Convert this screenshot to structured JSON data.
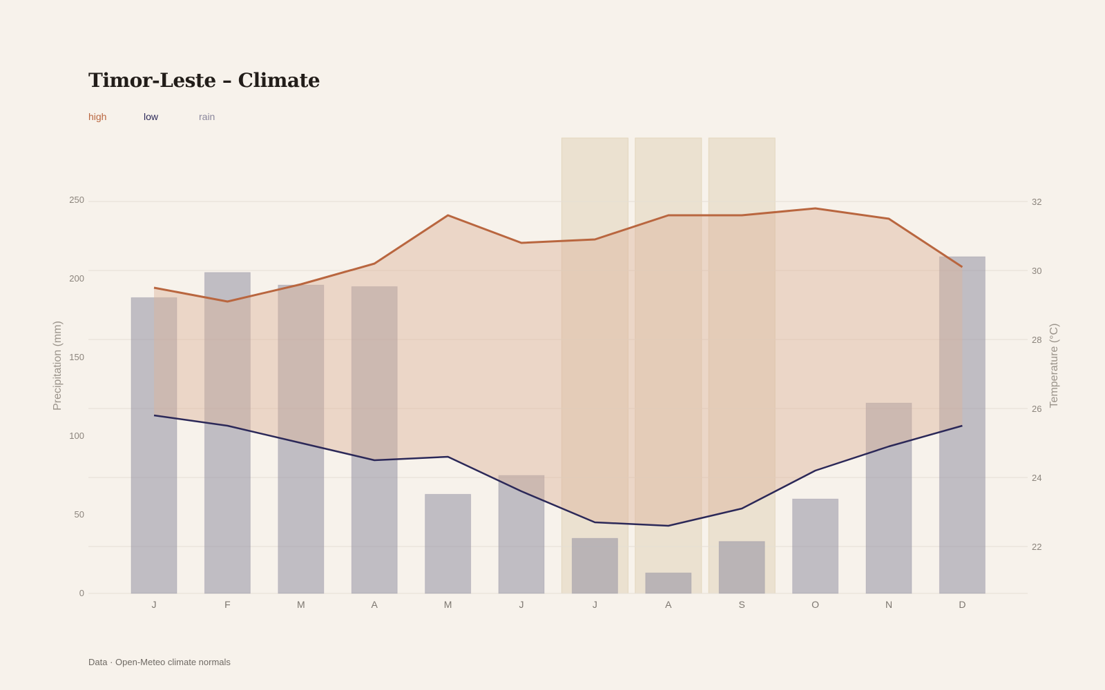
{
  "header": {
    "title": "Timor-Leste – Climate"
  },
  "legend": [
    {
      "label": "high",
      "color": "#b9663f"
    },
    {
      "label": "low",
      "color": "#2b2858"
    },
    {
      "label": "rain",
      "color": "#8a879c"
    }
  ],
  "footer": {
    "source": "Data · Open-Meteo climate normals"
  },
  "chart_data": {
    "type": "bar",
    "title": "Timor-Leste – Climate",
    "categories": [
      "J",
      "F",
      "M",
      "A",
      "M",
      "J",
      "J",
      "A",
      "S",
      "O",
      "N",
      "D"
    ],
    "series": [
      {
        "name": "rain",
        "type": "bar",
        "axis": "left",
        "unit": "mm",
        "values": [
          188,
          204,
          196,
          195,
          63,
          75,
          35,
          13,
          33,
          60,
          121,
          214
        ]
      },
      {
        "name": "high",
        "type": "line",
        "axis": "right",
        "unit": "°C",
        "values": [
          29.5,
          29.1,
          29.6,
          30.2,
          31.6,
          30.8,
          30.9,
          31.6,
          31.6,
          31.8,
          31.5,
          30.1
        ]
      },
      {
        "name": "low",
        "type": "line",
        "axis": "right",
        "unit": "°C",
        "values": [
          25.8,
          25.5,
          25.0,
          24.5,
          24.6,
          23.6,
          22.7,
          22.6,
          23.1,
          24.2,
          24.9,
          25.5
        ]
      }
    ],
    "shaded_band": "between high and low",
    "highlighted_months": [
      6,
      7,
      8
    ],
    "y_left": {
      "label": "Precipitation (mm)",
      "ticks": [
        0,
        50,
        100,
        150,
        200,
        250
      ],
      "range": [
        0,
        250
      ]
    },
    "y_right": {
      "label": "Temperature (°C)",
      "ticks": [
        22,
        24,
        26,
        28,
        30,
        32
      ],
      "range": [
        20.6,
        32
      ]
    },
    "grid": true,
    "legend_position": "top-left",
    "colors": {
      "bar": "#8a879c",
      "high": "#b9663f",
      "low": "#2b2858",
      "band": "#dcb39b",
      "highlight": "#e6dac4",
      "grid": "#e5ded4"
    }
  }
}
